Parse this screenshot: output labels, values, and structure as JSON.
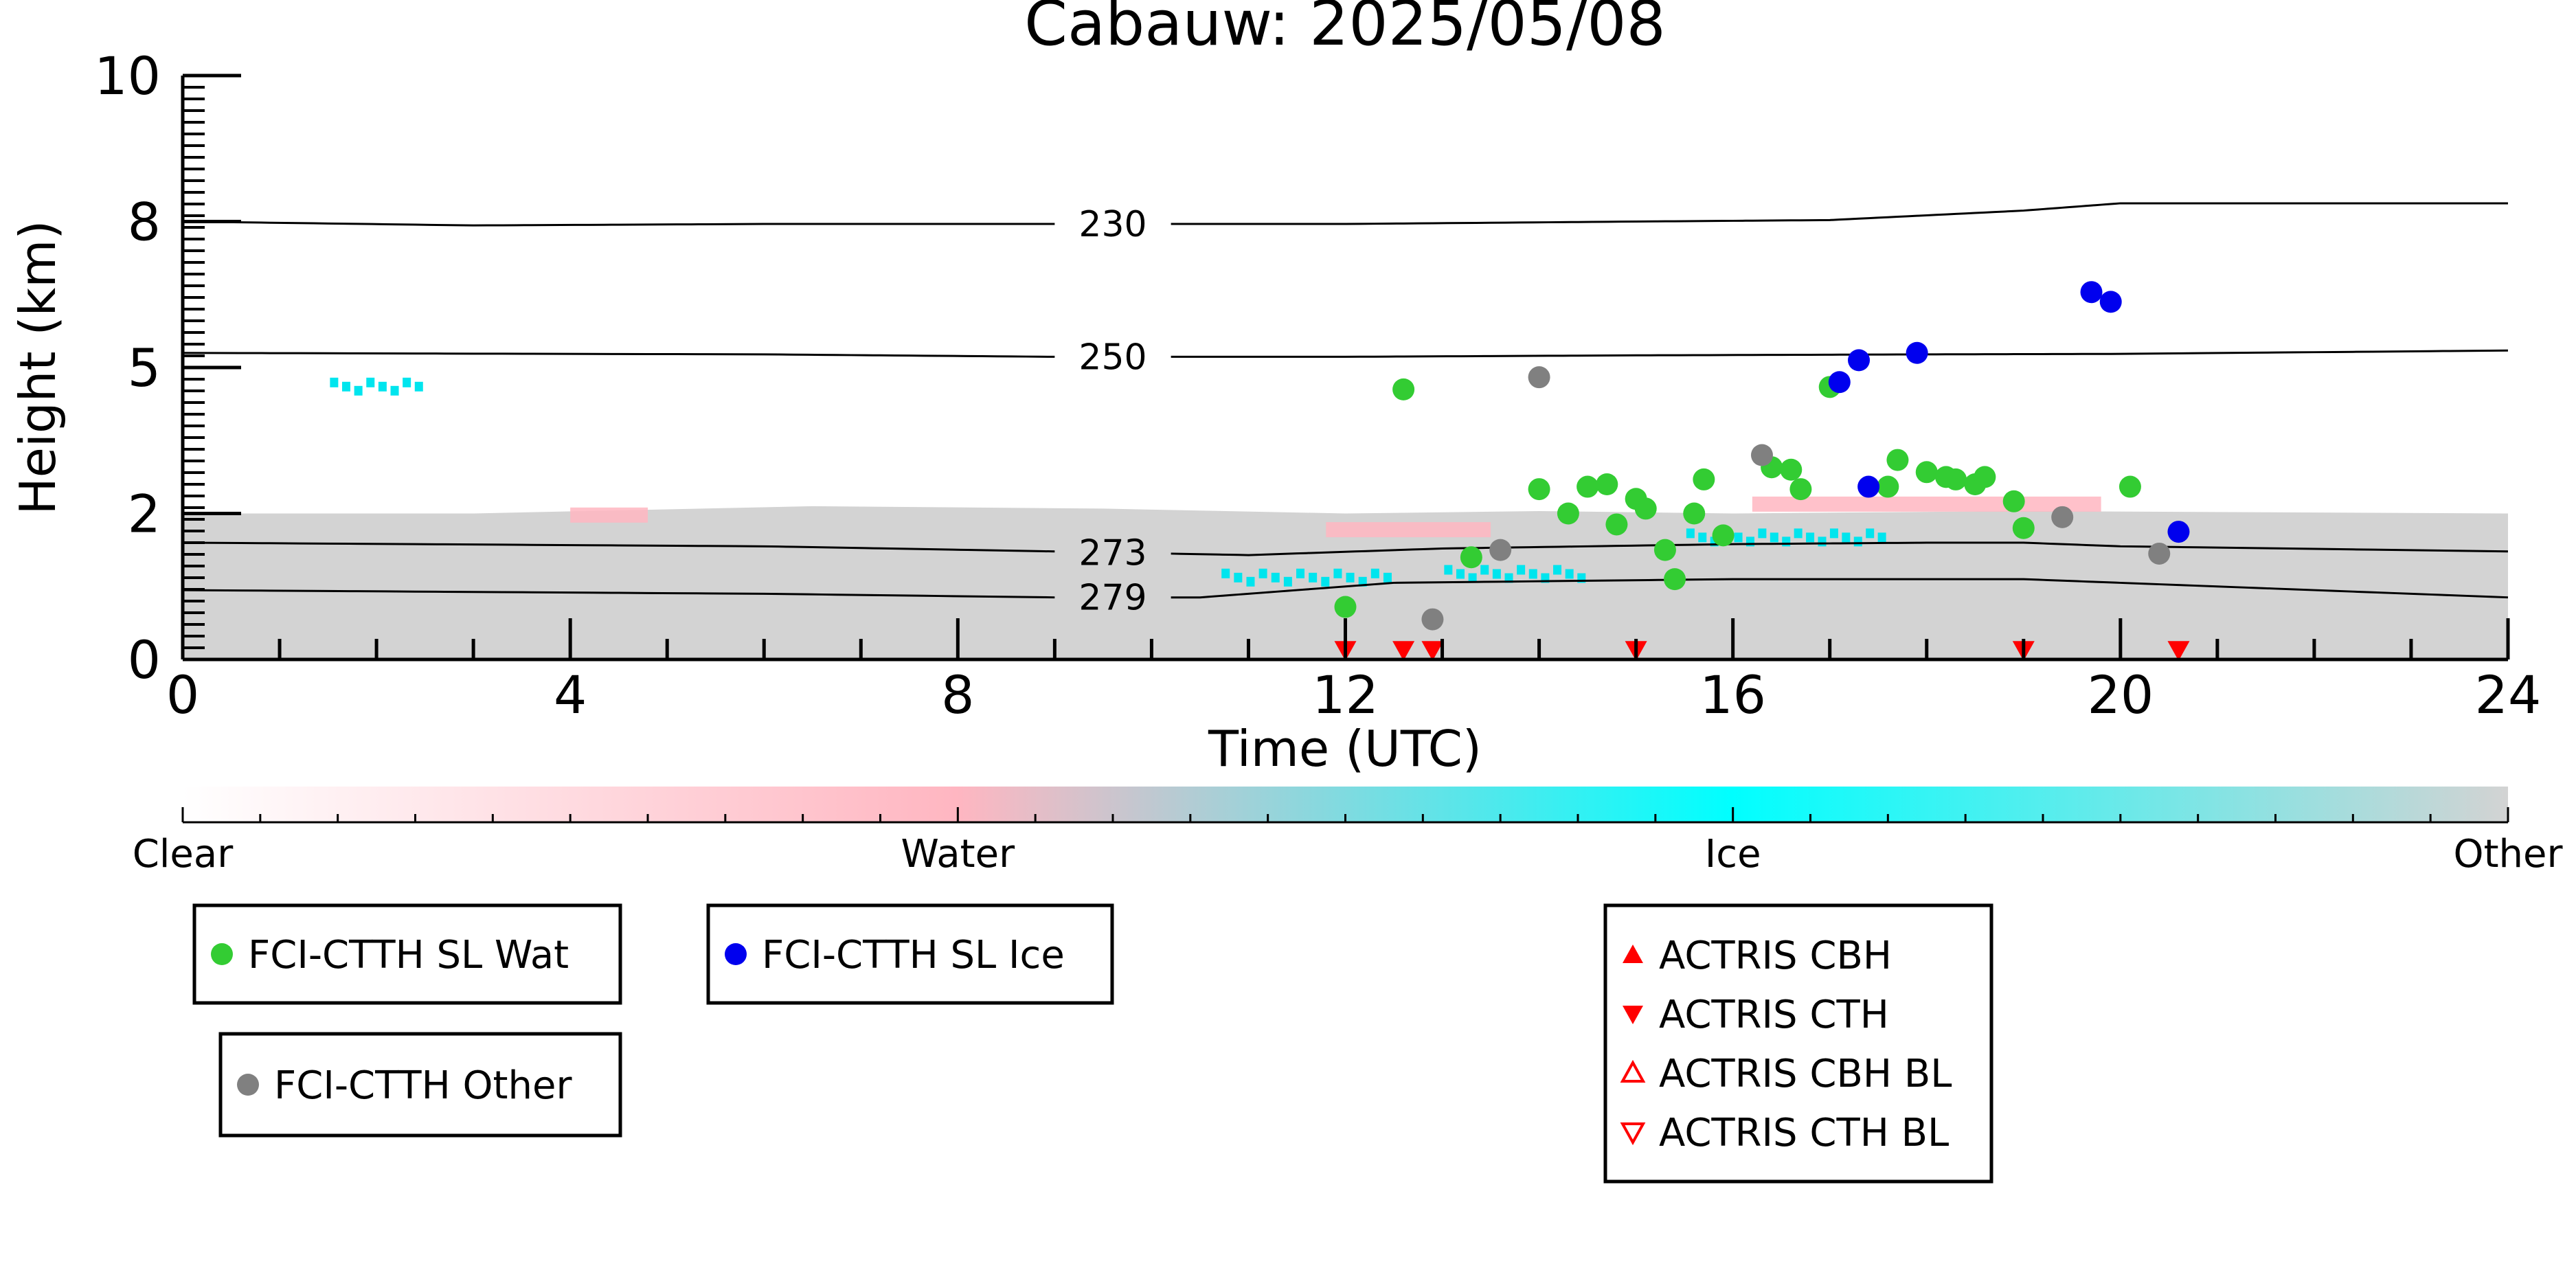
{
  "chart_data": {
    "type": "scatter",
    "title": "Cabauw: 2025/05/08",
    "xlabel": "Time (UTC)",
    "ylabel": "Height (km)",
    "xlim": [
      0,
      24
    ],
    "ylim": [
      0,
      10
    ],
    "x_ticks": [
      0,
      4,
      8,
      12,
      16,
      20,
      24
    ],
    "y_ticks": [
      0,
      2,
      5,
      8,
      10
    ],
    "y_scale": "nonlinear (ticks 0, 2, 5, 8, 10)",
    "grid": false,
    "background_layers": {
      "other_cloud_top_km": [
        [
          0,
          2.0
        ],
        [
          3,
          2.0
        ],
        [
          6.5,
          2.15
        ],
        [
          9.5,
          2.1
        ],
        [
          12,
          2.0
        ],
        [
          14,
          2.05
        ],
        [
          16,
          2.0
        ],
        [
          19,
          2.05
        ],
        [
          24,
          2.0
        ]
      ],
      "water_patches": [
        {
          "x": [
            4.0,
            4.8
          ],
          "y": 1.95
        },
        {
          "x": [
            11.8,
            13.5
          ],
          "y": 1.75
        },
        {
          "x": [
            16.2,
            19.8
          ],
          "y": 2.15
        }
      ],
      "ice_patches": [
        {
          "x": [
            1.5,
            2.5
          ],
          "y": 4.65
        },
        {
          "x": [
            10.7,
            12.5
          ],
          "y": 1.15
        },
        {
          "x": [
            13.0,
            14.5
          ],
          "y": 1.2
        },
        {
          "x": [
            15.5,
            17.6
          ],
          "y": 1.7
        }
      ]
    },
    "isotherms": [
      {
        "label": "230",
        "label_x": 9.6,
        "points": [
          [
            0,
            8.0
          ],
          [
            3,
            7.92
          ],
          [
            6,
            7.95
          ],
          [
            9,
            7.95
          ],
          [
            12,
            7.95
          ],
          [
            15,
            8.0
          ],
          [
            17,
            8.02
          ],
          [
            19,
            8.15
          ],
          [
            20,
            8.25
          ],
          [
            24,
            8.25
          ]
        ]
      },
      {
        "label": "250",
        "label_x": 9.6,
        "points": [
          [
            0,
            5.3
          ],
          [
            6,
            5.27
          ],
          [
            9,
            5.22
          ],
          [
            12,
            5.22
          ],
          [
            15,
            5.25
          ],
          [
            18,
            5.27
          ],
          [
            20,
            5.28
          ],
          [
            24,
            5.35
          ]
        ]
      },
      {
        "label": "273",
        "label_x": 9.6,
        "points": [
          [
            0,
            1.6
          ],
          [
            6,
            1.55
          ],
          [
            9,
            1.48
          ],
          [
            11,
            1.43
          ],
          [
            13,
            1.52
          ],
          [
            16,
            1.58
          ],
          [
            18,
            1.6
          ],
          [
            19,
            1.6
          ],
          [
            20,
            1.55
          ],
          [
            24,
            1.48
          ]
        ]
      },
      {
        "label": "279",
        "label_x": 9.6,
        "points": [
          [
            0,
            0.95
          ],
          [
            6,
            0.9
          ],
          [
            9,
            0.85
          ],
          [
            10.5,
            0.85
          ],
          [
            12.5,
            1.05
          ],
          [
            16,
            1.1
          ],
          [
            19,
            1.1
          ],
          [
            20,
            1.05
          ],
          [
            24,
            0.85
          ]
        ]
      }
    ],
    "series": [
      {
        "name": "FCI-CTTH SL Wat",
        "marker": "circle",
        "color": "#33cc33",
        "points": [
          [
            12.0,
            0.72
          ],
          [
            12.6,
            4.55
          ],
          [
            13.3,
            1.4
          ],
          [
            14.0,
            2.5
          ],
          [
            14.3,
            2.0
          ],
          [
            14.5,
            2.55
          ],
          [
            14.7,
            2.6
          ],
          [
            14.8,
            1.85
          ],
          [
            15.0,
            2.3
          ],
          [
            15.1,
            2.1
          ],
          [
            15.3,
            1.5
          ],
          [
            15.4,
            1.1
          ],
          [
            15.6,
            2.0
          ],
          [
            15.7,
            2.7
          ],
          [
            15.9,
            1.7
          ],
          [
            16.4,
            2.95
          ],
          [
            16.6,
            2.9
          ],
          [
            16.7,
            2.5
          ],
          [
            17.0,
            4.6
          ],
          [
            17.6,
            2.55
          ],
          [
            17.7,
            3.1
          ],
          [
            18.0,
            2.85
          ],
          [
            18.2,
            2.75
          ],
          [
            18.3,
            2.7
          ],
          [
            18.5,
            2.6
          ],
          [
            18.6,
            2.75
          ],
          [
            18.9,
            2.25
          ],
          [
            19.0,
            1.8
          ],
          [
            20.1,
            2.55
          ]
        ]
      },
      {
        "name": "FCI-CTTH SL Ice",
        "marker": "circle",
        "color": "#0000ee",
        "points": [
          [
            17.1,
            4.7
          ],
          [
            17.3,
            5.15
          ],
          [
            17.4,
            2.55
          ],
          [
            17.9,
            5.3
          ],
          [
            19.7,
            6.55
          ],
          [
            19.9,
            6.35
          ],
          [
            20.6,
            1.75
          ]
        ]
      },
      {
        "name": "FCI-CTTH Other",
        "marker": "circle",
        "color": "#808080",
        "points": [
          [
            12.9,
            0.55
          ],
          [
            13.6,
            1.5
          ],
          [
            14.0,
            4.8
          ],
          [
            16.3,
            3.2
          ],
          [
            19.4,
            1.95
          ],
          [
            20.4,
            1.45
          ]
        ]
      },
      {
        "name": "ACTRIS CBH",
        "marker": "triangle-up",
        "color": "#ff0000",
        "points": []
      },
      {
        "name": "ACTRIS CTH",
        "marker": "triangle-down",
        "color": "#ff0000",
        "points": [
          [
            12.0,
            0.02
          ],
          [
            12.6,
            0.02
          ],
          [
            12.9,
            0.02
          ],
          [
            15.0,
            0.02
          ],
          [
            19.0,
            0.02
          ],
          [
            20.6,
            0.02
          ]
        ]
      },
      {
        "name": "ACTRIS CBH BL",
        "marker": "triangle-up-open",
        "color": "#ff0000",
        "points": []
      },
      {
        "name": "ACTRIS CTH BL",
        "marker": "triangle-down-open",
        "color": "#ff0000",
        "points": []
      }
    ],
    "colorbar": {
      "labels": [
        "Clear",
        "Water",
        "Ice",
        "Other"
      ],
      "stops": [
        "#ffffff",
        "#ffb6c1",
        "#00ffff",
        "#d3d3d3"
      ]
    },
    "legends": [
      {
        "entries": [
          "FCI-CTTH SL Wat"
        ]
      },
      {
        "entries": [
          "FCI-CTTH SL Ice"
        ]
      },
      {
        "entries": [
          "FCI-CTTH Other"
        ]
      },
      {
        "entries": [
          "ACTRIS CBH",
          "ACTRIS CTH",
          "ACTRIS CBH BL",
          "ACTRIS CTH BL"
        ]
      }
    ]
  }
}
